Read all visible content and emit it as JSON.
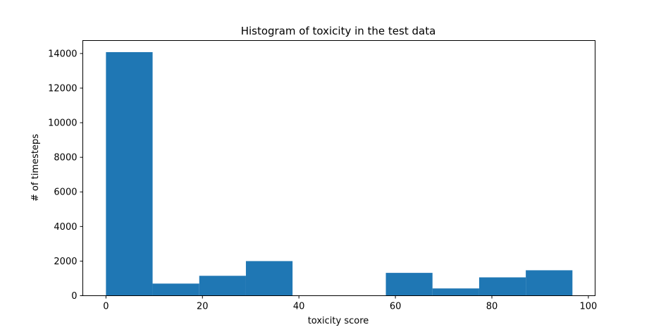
{
  "chart_data": {
    "type": "bar",
    "title": "Histogram of toxicity in the test data",
    "xlabel": "toxicity score",
    "ylabel": "# of timesteps",
    "xlim": [
      -4.8,
      101.4
    ],
    "ylim": [
      0,
      14750
    ],
    "xticks": [
      0,
      20,
      40,
      60,
      80,
      100
    ],
    "yticks": [
      0,
      2000,
      4000,
      6000,
      8000,
      10000,
      12000,
      14000
    ],
    "bins": [
      {
        "x0": 0.0,
        "x1": 9.67,
        "value": 14080
      },
      {
        "x0": 9.67,
        "x1": 19.34,
        "value": 700
      },
      {
        "x0": 19.34,
        "x1": 29.01,
        "value": 1150
      },
      {
        "x0": 29.01,
        "x1": 38.68,
        "value": 2000
      },
      {
        "x0": 38.68,
        "x1": 48.35,
        "value": 0
      },
      {
        "x0": 48.35,
        "x1": 58.02,
        "value": 0
      },
      {
        "x0": 58.02,
        "x1": 67.69,
        "value": 1320
      },
      {
        "x0": 67.69,
        "x1": 77.36,
        "value": 420
      },
      {
        "x0": 77.36,
        "x1": 87.03,
        "value": 1060
      },
      {
        "x0": 87.03,
        "x1": 96.7,
        "value": 1470
      }
    ],
    "bar_color": "#1f77b4",
    "grid": false,
    "legend": "none"
  }
}
